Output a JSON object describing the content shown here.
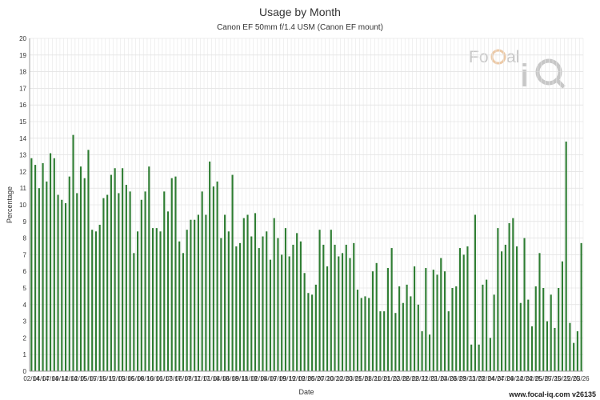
{
  "chart_data": {
    "type": "bar",
    "title": "Usage by Month",
    "subtitle": "Canon EF 50mm f/1.4 USM (Canon EF mount)",
    "xlabel": "Date",
    "ylabel": "Percentage",
    "ylim": [
      0,
      20
    ],
    "yticks": [
      0,
      1,
      2,
      3,
      4,
      5,
      6,
      7,
      8,
      9,
      10,
      11,
      12,
      13,
      14,
      15,
      16,
      17,
      18,
      19,
      20
    ],
    "grid": true,
    "legend": "none",
    "bar_color": "#2e7d32",
    "x_tick_labels": [
      "02/14",
      "04/14",
      "07/14",
      "09/14",
      "12/14",
      "02/15",
      "05/15",
      "07/15",
      "10/15",
      "12/15",
      "03/16",
      "05/16",
      "08/16",
      "10/16",
      "01/17",
      "03/17",
      "06/17",
      "08/17",
      "11/17",
      "01/18",
      "04/18",
      "06/18",
      "09/18",
      "11/18",
      "02/19",
      "04/19",
      "07/19",
      "09/19",
      "12/19",
      "02/20",
      "05/20",
      "07/20",
      "10/20",
      "12/20",
      "03/21",
      "05/21",
      "08/21",
      "10/21",
      "01/22",
      "03/22",
      "06/22",
      "08/22",
      "11/22",
      "01/23",
      "04/23",
      "06/23",
      "09/23",
      "11/23",
      "02/24",
      "04/24",
      "07/24",
      "09/24",
      "12/24",
      "02/25",
      "05/25",
      "07/25",
      "10/25",
      "12/25",
      "03/26"
    ],
    "values": [
      12.8,
      12.4,
      11.0,
      12.5,
      11.4,
      13.1,
      12.8,
      10.6,
      10.3,
      10.1,
      11.7,
      14.2,
      10.7,
      12.3,
      11.6,
      13.3,
      8.5,
      8.4,
      8.8,
      10.4,
      10.6,
      11.8,
      12.2,
      10.7,
      12.2,
      11.2,
      10.8,
      7.1,
      8.4,
      10.3,
      10.8,
      12.3,
      8.6,
      8.6,
      8.4,
      10.8,
      9.6,
      11.6,
      11.7,
      7.8,
      7.1,
      8.5,
      9.1,
      9.1,
      9.4,
      10.8,
      9.4,
      12.6,
      11.1,
      11.4,
      8.0,
      9.4,
      8.4,
      11.8,
      7.5,
      7.7,
      9.2,
      9.4,
      8.1,
      9.5,
      7.4,
      8.1,
      8.4,
      6.7,
      9.2,
      8.0,
      7.0,
      8.6,
      6.9,
      7.6,
      8.3,
      7.8,
      5.9,
      4.7,
      4.6,
      5.2,
      8.5,
      7.6,
      6.3,
      8.5,
      7.6,
      6.9,
      7.1,
      7.6,
      6.8,
      7.7,
      4.9,
      4.4,
      4.5,
      4.4,
      6.0,
      6.5,
      3.6,
      3.6,
      6.2,
      7.4,
      3.5,
      5.1,
      4.1,
      5.2,
      4.5,
      6.3,
      4.0,
      2.4,
      6.2,
      2.2,
      6.1,
      5.8,
      6.8,
      6.0,
      3.6,
      5.0,
      5.1,
      7.4,
      7.0,
      7.5,
      1.6,
      9.4,
      1.6,
      5.2,
      5.5,
      2.0,
      4.6,
      8.6,
      7.2,
      7.6,
      8.9,
      9.2,
      7.5,
      4.1,
      8.0,
      4.3,
      2.7,
      5.1,
      7.1,
      5.0,
      3.0,
      4.6,
      2.6,
      5.0,
      6.6,
      13.8,
      2.9,
      1.7,
      2.4,
      7.7
    ]
  },
  "watermark": {
    "logo_text": "FoCal iQ"
  },
  "footer": {
    "text": "www.focal-iq.com  v26135"
  }
}
